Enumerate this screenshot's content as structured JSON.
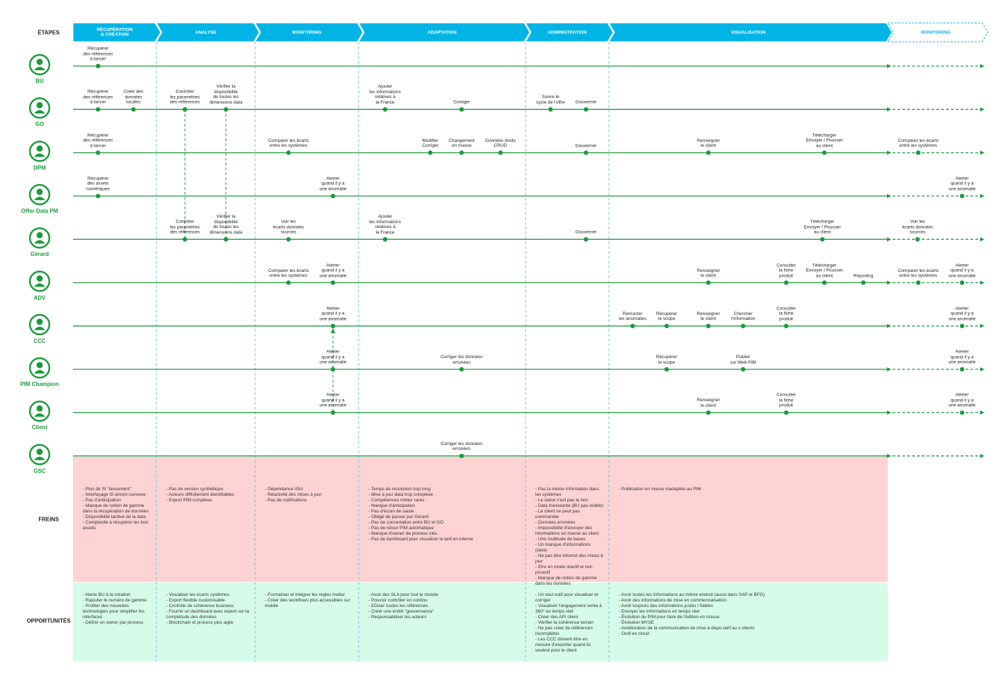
{
  "header": {
    "stages_label": "ÉTAPES",
    "stages": [
      "RÉCUPÉRATION\n& CRÉATION",
      "ANALYSE",
      "MONITORING",
      "ADAPTATION",
      "ADMINISTRATION",
      "VISUALISATION",
      "MONITORING"
    ]
  },
  "lanes": [
    {
      "name": "BU",
      "steps": [
        "Récupérer\ndes références\nà lancer"
      ]
    },
    {
      "name": "GO",
      "steps": [
        "Récupérer\ndes références\nà lancer",
        "Créer des\ndonnées\nlocales",
        "Contrôler\nles paramètres\ndes références",
        "Vérifier la\ndisponibilité\nde toutes les\ndimensions data",
        "Ajouter\nles informations\nrelatives à\nla France",
        "Corriger",
        "Suivre le\ncycle de l'offre",
        "Gouverner"
      ]
    },
    {
      "name": "DPM",
      "steps": [
        "Récupérer\ndes références\nà lancer",
        "Comparer les écarts\nentre les systèmes",
        "Modifier\nCorriger",
        "Changement\nen masse",
        "Données droits\nCRUD",
        "Gouverner",
        "Renseigner\nle client",
        "Télécharger\nEnvoyer / Pousser\nau client",
        "Comparer les écarts\nentre les systèmes"
      ]
    },
    {
      "name": "Offer Data PM",
      "steps": [
        "Récupérer\ndes assets\nnumériques",
        "Alerter\nquand il y a\nune anomalie",
        "Alerter\nquand il y a\nune anomalie"
      ]
    },
    {
      "name": "Gérard",
      "steps": [
        "Contrôler\nles paramètres\ndes références",
        "Vérifier la\ndisponibilité\nde toutes les\ndimensions data",
        "Voir les\nécarts données\nsources",
        "Ajouter\nles informations\nrelatives à\nla France",
        "Gouverner",
        "Télécharger\nEnvoyer / Pousser\nau client",
        "Voir les\nécarts données\nsources"
      ]
    },
    {
      "name": "ADV",
      "steps": [
        "Comparer les écarts\nentre les systèmes",
        "Alerter\nquand il y a\nune anomalie",
        "Renseigner\nle client",
        "Consulter\nla fiche\nproduit",
        "Télécharger\nEnvoyer / Pousser\nau client",
        "Reporting",
        "Comparer les écarts\nentre les systèmes",
        "Alerter\nquand il y a\nune anomalie"
      ]
    },
    {
      "name": "CCC",
      "steps": [
        "Alerter\nquand il y a\nune anomalie",
        "Remonter\nles anomalies",
        "Récupérer\nle scope",
        "Renseigner\nle client",
        "Chercher\nl'information",
        "Consulter\nla fiche\nproduit",
        "Alerter\nquand il y a\nune anomalie"
      ]
    },
    {
      "name": "PIM Champion",
      "steps": [
        "Alerter\nquand il y a\nune anomalie",
        "Corriger les données\nerronées",
        "Récupérer\nle scope",
        "Publier\nsur Web PIM",
        "Alerter\nquand il y a\nune anomalie"
      ]
    },
    {
      "name": "Client",
      "steps": [
        "Alerter\nquand il y a\nune anomalie",
        "Renseigner\nle client",
        "Consulter\nla fiche\nproduit",
        "Alerter\nquand il y a\nune anomalie"
      ]
    },
    {
      "name": "GSC",
      "steps": [
        "Corriger les données\nerronées"
      ]
    }
  ],
  "freins": {
    "label": "FREINS",
    "columns": [
      [
        "- Plus de SI “lancement”",
        "- Interfaçage SI amont connexe",
        "- Pas d'anticipation",
        "- Manque de notion de gamme dans la récupération de données",
        "- Disponibilité tardive de la data",
        "- Complexité à récupérer les bon assets"
      ],
      [
        "- Pas de version synthétique",
        "- Acteurs difficilement identifiables",
        "- Export PIM complexe"
      ],
      [
        "- Dépendance ISIA",
        "- Réactivité des mises à jour",
        "- Pas de notifications"
      ],
      [
        "- Temps de résolution trop long",
        "- Mise à jour data trop complexe",
        "- Compétences métier rares",
        "- Manque d'anticipation",
        "- Pas d'écran de saisie",
        "- Obligé de passer par Gérard",
        "- Pas de concertation entre BU et GO",
        "- Pas de retour PIM automatique",
        "- Manque d'owner de process clés",
        "- Pas de dashboard pour visualiser le tarif en interne"
      ],
      [
        "- Pas la même information dans les systèmes",
        "- Le statut n'est pas le bon",
        "- Data inexistante (BU pas visible)",
        "- Le client ne peut pas commander",
        "- Données erronées",
        "- Impossibilité d'envoyer des informations en masse au client",
        "- Une multitude de bases",
        "- Un manque d'informations (data)",
        "- Ne pas être informé des mises à jour",
        "- Etre en mode réactif et non proactif",
        "- Manque de notion de gamme dans les données"
      ],
      [
        "- Publication en masse inadaptée au PIM"
      ]
    ]
  },
  "opportunites": {
    "label": "OPPORTUNITÉS",
    "columns": [
      [
        "- Alerte BU à la création",
        "- Rajouter le numéro de gamme",
        "- Profiter des nouvelles technologies pour simplifier les interfaces",
        "- Définir un owner par process"
      ],
      [
        "- Visualiser les écarts systèmes",
        "- Export flexible customisable",
        "- Contrôle de cohérence business",
        "- Fournir un dashboard avec export sur la complétude des données",
        "- Blockchain et process plus agile"
      ],
      [
        "- Formaliser et intégrer les règles métier",
        "- Créer des workflows plus accessibles sur mobile"
      ],
      [
        "- Avoir des SLA pour tout le monde",
        "- Pouvoir contrôler en continu",
        "- EDiser toutes les références",
        "- Créer une entité “gouvernance”",
        "- Responsabiliser les acteurs"
      ],
      [
        "- Un seul outil pour visualiser et corriger",
        "- Visualiser l'engagement vente à 360° en temps réel",
        "- Créer des API client",
        "- Vérifier la cohérence terrain",
        "- Ne pas créer de références incomplètes",
        "- Les CCC doivent être en mesure d'exporter quand ils veulent pour le client"
      ],
      [
        "- Avoir toutes les informations au même endroit (aussi dans SAP et BFO)",
        "- Avoir des informations de mise en commercialisation",
        "- Avoir toujours des informations justes / fiables",
        "- Envoyer les informations en temps réel",
        "- Évolution du PIM pour faire de l'édition en masse",
        "- Évolution MYSE",
        "- Amélioration de la communication de mise à dispo tarif au x clients",
        "- Outil en cloud"
      ]
    ]
  }
}
